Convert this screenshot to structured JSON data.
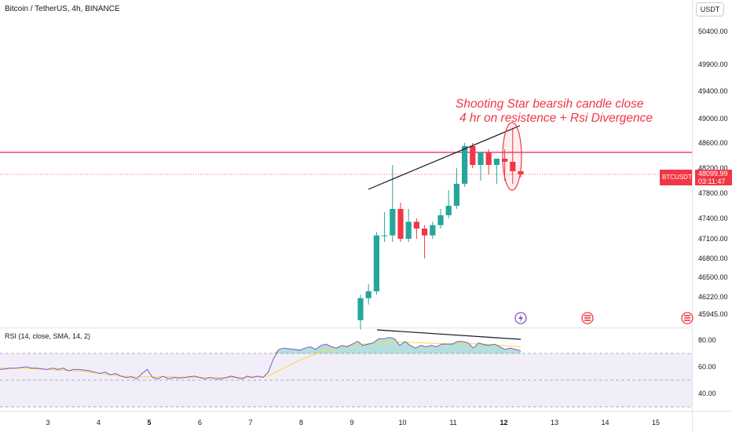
{
  "header": {
    "symbol_title": "Bitcoin / TetherUS, 4h, BINANCE",
    "currency_button": "USDT"
  },
  "rsi_label": "RSI (14, close, SMA, 14, 2)",
  "price_tag": {
    "symbol": "BTCUSDT",
    "price": "48099.99",
    "countdown": "03:11:47"
  },
  "annotation": {
    "line1": "Shooting Star bearsih candle close",
    "line2": "4 hr on resistence + Rsi Divergence"
  },
  "colors": {
    "up": "#26a69a",
    "down": "#f23645",
    "resistance": "#e91e63",
    "annotation": "#f23645",
    "rsi": "#7e57c2",
    "rsi_ma": "#fdd835"
  },
  "chart_data": {
    "type": "candlestick",
    "price_axis": {
      "ticks": [
        "50400.00",
        "49900.00",
        "49400.00",
        "49000.00",
        "48600.00",
        "48200.00",
        "47800.00",
        "47400.00",
        "47100.00",
        "46800.00",
        "46500.00",
        "46220.00",
        "45945.00"
      ]
    },
    "time_axis": {
      "ticks": [
        {
          "label": "3",
          "bold": false
        },
        {
          "label": "4",
          "bold": false
        },
        {
          "label": "5",
          "bold": true
        },
        {
          "label": "6",
          "bold": false
        },
        {
          "label": "7",
          "bold": false
        },
        {
          "label": "8",
          "bold": false
        },
        {
          "label": "9",
          "bold": false
        },
        {
          "label": "10",
          "bold": false
        },
        {
          "label": "11",
          "bold": false
        },
        {
          "label": "12",
          "bold": true
        },
        {
          "label": "13",
          "bold": false
        },
        {
          "label": "14",
          "bold": false
        },
        {
          "label": "15",
          "bold": false
        }
      ]
    },
    "candles": [
      {
        "o": 45850,
        "h": 46250,
        "l": 45700,
        "c": 46200
      },
      {
        "o": 46200,
        "h": 46400,
        "l": 46100,
        "c": 46300
      },
      {
        "o": 46300,
        "h": 47200,
        "l": 46250,
        "c": 47150
      },
      {
        "o": 47150,
        "h": 47500,
        "l": 47050,
        "c": 47150
      },
      {
        "o": 47150,
        "h": 48250,
        "l": 47050,
        "c": 47550
      },
      {
        "o": 47550,
        "h": 47650,
        "l": 47050,
        "c": 47100
      },
      {
        "o": 47100,
        "h": 47550,
        "l": 47050,
        "c": 47350
      },
      {
        "o": 47350,
        "h": 47400,
        "l": 47100,
        "c": 47250
      },
      {
        "o": 47250,
        "h": 47300,
        "l": 46800,
        "c": 47150
      },
      {
        "o": 47150,
        "h": 47350,
        "l": 47100,
        "c": 47300
      },
      {
        "o": 47300,
        "h": 47550,
        "l": 47250,
        "c": 47450
      },
      {
        "o": 47450,
        "h": 47850,
        "l": 47400,
        "c": 47600
      },
      {
        "o": 47600,
        "h": 48200,
        "l": 47550,
        "c": 47950
      },
      {
        "o": 47950,
        "h": 48600,
        "l": 47900,
        "c": 48550
      },
      {
        "o": 48550,
        "h": 48600,
        "l": 48200,
        "c": 48250
      },
      {
        "o": 48250,
        "h": 48450,
        "l": 48000,
        "c": 48450
      },
      {
        "o": 48450,
        "h": 48500,
        "l": 48100,
        "c": 48250
      },
      {
        "o": 48250,
        "h": 48350,
        "l": 47950,
        "c": 48350
      },
      {
        "o": 48350,
        "h": 48500,
        "l": 48000,
        "c": 48300
      },
      {
        "o": 48300,
        "h": 48850,
        "l": 47950,
        "c": 48150
      },
      {
        "o": 48150,
        "h": 48200,
        "l": 48050,
        "c": 48100
      }
    ],
    "resistance_level": 48450,
    "last_price": 48099.99,
    "rsi": {
      "levels": [
        70,
        50,
        30
      ],
      "ticks": [
        "80.00",
        "60.00",
        "40.00"
      ],
      "values": [
        58,
        58.5,
        59,
        59,
        59.5,
        60,
        59,
        59,
        58.5,
        58,
        59,
        58,
        59,
        57,
        58,
        58,
        57.5,
        57,
        56,
        55,
        56,
        54,
        55,
        53,
        52,
        52.5,
        51,
        55,
        58,
        52,
        51,
        53,
        51,
        52,
        51.5,
        52,
        52.5,
        53,
        52,
        51,
        52,
        51,
        51,
        52,
        53,
        52,
        51,
        53,
        52,
        53,
        52,
        56,
        66,
        73,
        74,
        73.5,
        73,
        72.5,
        74,
        75,
        73,
        76,
        77,
        75,
        74,
        76,
        75,
        77,
        79,
        76,
        77,
        78,
        81,
        81,
        82,
        81,
        76,
        79,
        76,
        74,
        76,
        75,
        76,
        75,
        77,
        77,
        77,
        79,
        79,
        78,
        74,
        78,
        76.5,
        76,
        77,
        75,
        73,
        74,
        73,
        72
      ],
      "ma": [
        59,
        59,
        59,
        59,
        59,
        58.8,
        58.6,
        58.5,
        58.3,
        58,
        57.8,
        57.5,
        57.5,
        57.2,
        57,
        56.8,
        56.5,
        56,
        55.5,
        55,
        54.5,
        54,
        53.5,
        53,
        53,
        53,
        52.5,
        52.5,
        52.5,
        52.5,
        52.5,
        52.5,
        52.5,
        52.5,
        52.3,
        52,
        52,
        52,
        52,
        52,
        52,
        52,
        52,
        52,
        52,
        52,
        52,
        52,
        52.5,
        52.5,
        52.5,
        53,
        55,
        57,
        59,
        61,
        63,
        65,
        66.5,
        68,
        69.5,
        71,
        72.5,
        73.5,
        74.5,
        75,
        75.5,
        76,
        76.5,
        77,
        77.3,
        77.6,
        78,
        78.2,
        78.4,
        78.6,
        78.6,
        78.6,
        78.4,
        78.2,
        78,
        77.8,
        77.6,
        77.5,
        77.4,
        77.3,
        77.3,
        77.3,
        77.3,
        77.3,
        77.2,
        77.1,
        77,
        76.8,
        76.5,
        76.2,
        75.9,
        75.6,
        75.3,
        75
      ]
    }
  }
}
